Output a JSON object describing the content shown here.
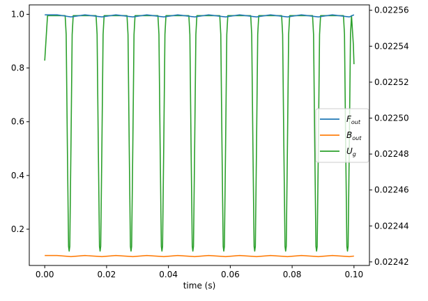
{
  "chart_data": {
    "type": "line",
    "xlabel": "time (s)",
    "xlim": [
      -0.005,
      0.105
    ],
    "x_ticks": [
      0.0,
      0.02,
      0.04,
      0.06,
      0.08,
      0.1
    ],
    "x_tick_labels": [
      "0.00",
      "0.02",
      "0.04",
      "0.06",
      "0.08",
      "0.10"
    ],
    "y_left": {
      "lim": [
        0.065,
        1.035
      ],
      "ticks": [
        0.2,
        0.4,
        0.6,
        0.8,
        1.0
      ],
      "tick_labels": [
        "0.2",
        "0.4",
        "0.6",
        "0.8",
        "1.0"
      ]
    },
    "y_right": {
      "lim": [
        0.022418,
        0.022563
      ],
      "ticks": [
        0.02242,
        0.02244,
        0.02246,
        0.02248,
        0.0225,
        0.02252,
        0.02254,
        0.02256
      ],
      "tick_labels": [
        "0.02242",
        "0.02244",
        "0.02246",
        "0.02248",
        "0.02250",
        "0.02252",
        "0.02254",
        "0.02256"
      ]
    },
    "grid": false,
    "legend_position": "center-right",
    "series": [
      {
        "name_main": "F",
        "name_sub": "out",
        "color": "#1f77b4",
        "axis": "left",
        "description": "near-constant ~0.997-1.0 with small periodic dips",
        "x": [
          0.0,
          0.004,
          0.0085,
          0.013,
          0.0185,
          0.023,
          0.0285,
          0.033,
          0.0385,
          0.043,
          0.0485,
          0.053,
          0.0585,
          0.063,
          0.0685,
          0.073,
          0.0785,
          0.083,
          0.0885,
          0.093,
          0.0985,
          0.1
        ],
        "y": [
          0.998,
          0.998,
          0.99,
          0.998,
          0.99,
          0.998,
          0.99,
          0.998,
          0.99,
          0.998,
          0.99,
          0.998,
          0.99,
          0.998,
          0.99,
          0.998,
          0.99,
          0.998,
          0.99,
          0.998,
          0.99,
          0.998
        ]
      },
      {
        "name_main": "B",
        "name_sub": "out",
        "color": "#ff7f0e",
        "axis": "left",
        "description": "near-constant ~0.10 with small periodic dips",
        "x": [
          0.0,
          0.004,
          0.0085,
          0.013,
          0.0185,
          0.023,
          0.0285,
          0.033,
          0.0385,
          0.043,
          0.0485,
          0.053,
          0.0585,
          0.063,
          0.0685,
          0.073,
          0.0785,
          0.083,
          0.0885,
          0.093,
          0.0985,
          0.1
        ],
        "y": [
          0.102,
          0.102,
          0.098,
          0.102,
          0.098,
          0.102,
          0.098,
          0.102,
          0.098,
          0.102,
          0.098,
          0.102,
          0.098,
          0.102,
          0.098,
          0.102,
          0.098,
          0.102,
          0.098,
          0.102,
          0.098,
          0.1
        ]
      },
      {
        "name_main": "U",
        "name_sub": "g",
        "color": "#2ca02c",
        "axis": "right",
        "description": "periodic square-like oscillation between ~0.022426 and ~0.022557, period ~0.01 s",
        "period": 0.01,
        "high": 0.022557,
        "low": 0.022426,
        "start_value": 0.022532,
        "end_value": 0.02253,
        "x_start": 0.0,
        "x_end": 0.1
      }
    ]
  }
}
